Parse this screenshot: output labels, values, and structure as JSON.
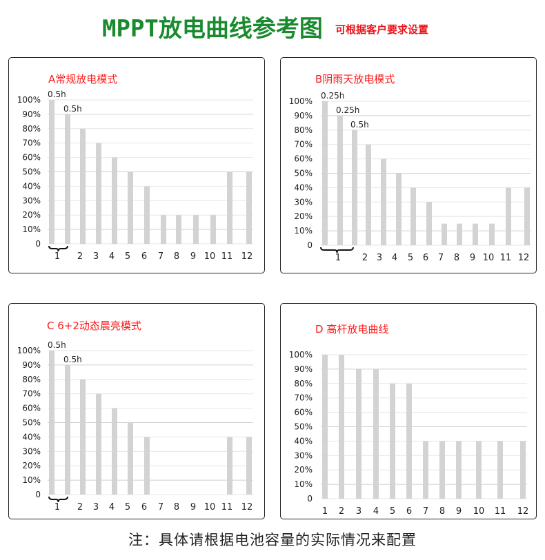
{
  "header": {
    "title": "MPPT放电曲线参考图",
    "subtitle": "可根据客户要求设置"
  },
  "footer_note": "注：具体请根据电池容量的实际情况来配置",
  "colors": {
    "title": "#1a8a2e",
    "subtitle": "#e8141a",
    "panel_title": "#ff1a1a",
    "bar": "#d3d3d3",
    "grid": "#e6e6e6"
  },
  "chart_data": [
    {
      "type": "bar",
      "title": "A常规放电模式",
      "categories": [
        "1",
        "2",
        "3",
        "4",
        "5",
        "6",
        "7",
        "8",
        "9",
        "10",
        "11",
        "12"
      ],
      "ylim": [
        0,
        100
      ],
      "yticks": [
        "0",
        "10%",
        "20%",
        "30%",
        "40%",
        "50%",
        "60%",
        "70%",
        "80%",
        "90%",
        "100%"
      ],
      "grid": true,
      "bars": [
        {
          "category": "1",
          "value": 100,
          "label": "0.5h"
        },
        {
          "category": "1",
          "value": 90,
          "label": "0.5h"
        },
        {
          "category": "2",
          "value": 80
        },
        {
          "category": "3",
          "value": 70
        },
        {
          "category": "4",
          "value": 60
        },
        {
          "category": "5",
          "value": 50
        },
        {
          "category": "6",
          "value": 40
        },
        {
          "category": "7",
          "value": 20
        },
        {
          "category": "8",
          "value": 20
        },
        {
          "category": "9",
          "value": 20
        },
        {
          "category": "10",
          "value": 20
        },
        {
          "category": "11",
          "value": 50
        },
        {
          "category": "12",
          "value": 50
        }
      ]
    },
    {
      "type": "bar",
      "title": "B阴雨天放电模式",
      "categories": [
        "1",
        "2",
        "3",
        "4",
        "5",
        "6",
        "7",
        "8",
        "9",
        "10",
        "11",
        "12"
      ],
      "ylim": [
        0,
        100
      ],
      "yticks": [
        "0",
        "10%",
        "20%",
        "30%",
        "40%",
        "50%",
        "60%",
        "70%",
        "80%",
        "90%",
        "100%"
      ],
      "grid": true,
      "bars": [
        {
          "category": "1",
          "value": 100,
          "label": "0.25h"
        },
        {
          "category": "1",
          "value": 90,
          "label": "0.25h"
        },
        {
          "category": "1",
          "value": 80,
          "label": "0.5h"
        },
        {
          "category": "2",
          "value": 70
        },
        {
          "category": "3",
          "value": 60
        },
        {
          "category": "4",
          "value": 50
        },
        {
          "category": "5",
          "value": 40
        },
        {
          "category": "6",
          "value": 30
        },
        {
          "category": "7",
          "value": 15
        },
        {
          "category": "8",
          "value": 15
        },
        {
          "category": "9",
          "value": 15
        },
        {
          "category": "10",
          "value": 15
        },
        {
          "category": "11",
          "value": 40
        },
        {
          "category": "12",
          "value": 40
        }
      ]
    },
    {
      "type": "bar",
      "title": "C 6+2动态晨亮模式",
      "categories": [
        "1",
        "2",
        "3",
        "4",
        "5",
        "6",
        "7",
        "8",
        "9",
        "10",
        "11",
        "12"
      ],
      "ylim": [
        0,
        100
      ],
      "yticks": [
        "0",
        "10%",
        "20%",
        "30%",
        "40%",
        "50%",
        "60%",
        "70%",
        "80%",
        "90%",
        "100%"
      ],
      "grid": true,
      "bars": [
        {
          "category": "1",
          "value": 100,
          "label": "0.5h"
        },
        {
          "category": "1",
          "value": 90,
          "label": "0.5h"
        },
        {
          "category": "2",
          "value": 80
        },
        {
          "category": "3",
          "value": 70
        },
        {
          "category": "4",
          "value": 60
        },
        {
          "category": "5",
          "value": 50
        },
        {
          "category": "6",
          "value": 40
        },
        {
          "category": "7",
          "value": 0
        },
        {
          "category": "8",
          "value": 0
        },
        {
          "category": "9",
          "value": 0
        },
        {
          "category": "10",
          "value": 0
        },
        {
          "category": "11",
          "value": 40
        },
        {
          "category": "12",
          "value": 40
        }
      ]
    },
    {
      "type": "bar",
      "title": "D 高杆放电曲线",
      "categories": [
        "1",
        "2",
        "3",
        "4",
        "5",
        "6",
        "7",
        "8",
        "9",
        "10",
        "11",
        "12"
      ],
      "ylim": [
        0,
        100
      ],
      "yticks": [
        "0",
        "10%",
        "20%",
        "30%",
        "40%",
        "50%",
        "60%",
        "70%",
        "80%",
        "90%",
        "100%"
      ],
      "grid": true,
      "bars": [
        {
          "category": "1",
          "value": 100
        },
        {
          "category": "2",
          "value": 100
        },
        {
          "category": "3",
          "value": 90
        },
        {
          "category": "4",
          "value": 90
        },
        {
          "category": "5",
          "value": 80
        },
        {
          "category": "6",
          "value": 80
        },
        {
          "category": "7",
          "value": 40
        },
        {
          "category": "8",
          "value": 40
        },
        {
          "category": "9",
          "value": 40
        },
        {
          "category": "10",
          "value": 40
        },
        {
          "category": "11",
          "value": 40
        },
        {
          "category": "12",
          "value": 40
        }
      ]
    }
  ]
}
